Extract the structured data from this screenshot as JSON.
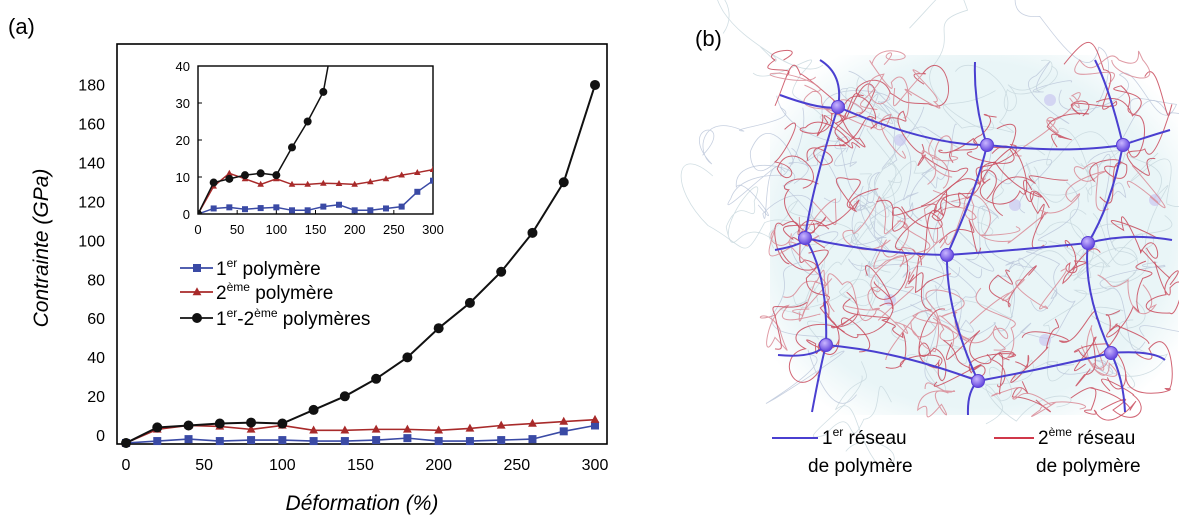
{
  "panel_a": {
    "label": "(a)",
    "chart_data": {
      "type": "line",
      "xlabel": "Déformation (%)",
      "ylabel": "Contrainte (GPa)",
      "xlim": [
        0,
        300
      ],
      "ylim": [
        0,
        185
      ],
      "x_ticks": [
        "0",
        "50",
        "100",
        "150",
        "200",
        "250",
        "300"
      ],
      "y_ticks": [
        "0",
        "20",
        "40",
        "60",
        "80",
        "100",
        "120",
        "140",
        "160",
        "180"
      ],
      "grid": false,
      "legend_position": "center-left",
      "series": [
        {
          "key": "first",
          "name_parts": [
            "",
            "1",
            "er",
            " polymère"
          ],
          "color": "#3a4aa5",
          "marker": "square",
          "x": [
            0,
            20,
            40,
            60,
            80,
            100,
            120,
            140,
            160,
            180,
            200,
            220,
            240,
            260,
            280,
            300
          ],
          "y": [
            0,
            1,
            2,
            1,
            1.5,
            1.5,
            1,
            1,
            1.5,
            2.5,
            1,
            1,
            1.5,
            2,
            6,
            9
          ]
        },
        {
          "key": "second",
          "name_parts": [
            "",
            "2",
            "ème",
            " polymère"
          ],
          "color": "#a82a2a",
          "marker": "triangle",
          "x": [
            0,
            20,
            40,
            60,
            80,
            100,
            120,
            140,
            160,
            180,
            200,
            220,
            240,
            260,
            280,
            300
          ],
          "y": [
            0,
            7,
            9,
            8.5,
            7,
            9,
            6.5,
            6.5,
            7,
            7,
            6.5,
            7.5,
            9,
            10,
            11,
            12
          ]
        },
        {
          "key": "both",
          "name_parts": [
            "",
            "1",
            "er",
            "-",
            "2",
            "ème",
            " polymères"
          ],
          "color": "#111111",
          "marker": "circle",
          "x": [
            0,
            20,
            40,
            60,
            80,
            100,
            120,
            140,
            160,
            180,
            200,
            220,
            240,
            260,
            280,
            300
          ],
          "y": [
            0,
            8,
            9,
            10,
            10.5,
            10,
            17,
            24,
            33,
            44,
            59,
            72,
            88,
            108,
            134,
            184
          ]
        }
      ],
      "inset": {
        "xlim": [
          0,
          300
        ],
        "ylim": [
          0,
          40
        ],
        "x_ticks": [
          "0",
          "50",
          "100",
          "150",
          "200",
          "250",
          "300"
        ],
        "y_ticks": [
          "0",
          "10",
          "20",
          "30",
          "40"
        ],
        "series": [
          {
            "key": "first",
            "x": [
              0,
              20,
              40,
              60,
              80,
              100,
              120,
              140,
              160,
              180,
              200,
              220,
              240,
              260,
              280,
              300
            ],
            "y": [
              0,
              1.5,
              1.8,
              1.3,
              1.6,
              1.8,
              1,
              1,
              2,
              2.5,
              1,
              1,
              1.5,
              2,
              6,
              9
            ]
          },
          {
            "key": "second",
            "x": [
              0,
              20,
              40,
              60,
              80,
              100,
              120,
              140,
              160,
              180,
              200,
              220,
              240,
              260,
              280,
              300
            ],
            "y": [
              0,
              7.5,
              11,
              9.5,
              8,
              9.5,
              8,
              8,
              8.3,
              8.2,
              8,
              8.7,
              9.5,
              10.5,
              11.2,
              12
            ]
          },
          {
            "key": "both",
            "x": [
              0,
              20,
              40,
              60,
              80,
              100,
              120,
              140,
              160
            ],
            "y": [
              0,
              8.5,
              9.5,
              10.5,
              11,
              10.5,
              18,
              25,
              33
            ]
          }
        ]
      }
    }
  },
  "panel_b": {
    "label": "(b)",
    "legend": {
      "first": {
        "line1_parts": [
          "1",
          "er",
          " réseau"
        ],
        "line2": "de polymère",
        "color": "#4a3fd0"
      },
      "second": {
        "line1_parts": [
          "2",
          "ème",
          " réseau"
        ],
        "line2": "de polymère",
        "color": "#d0384a"
      }
    }
  }
}
